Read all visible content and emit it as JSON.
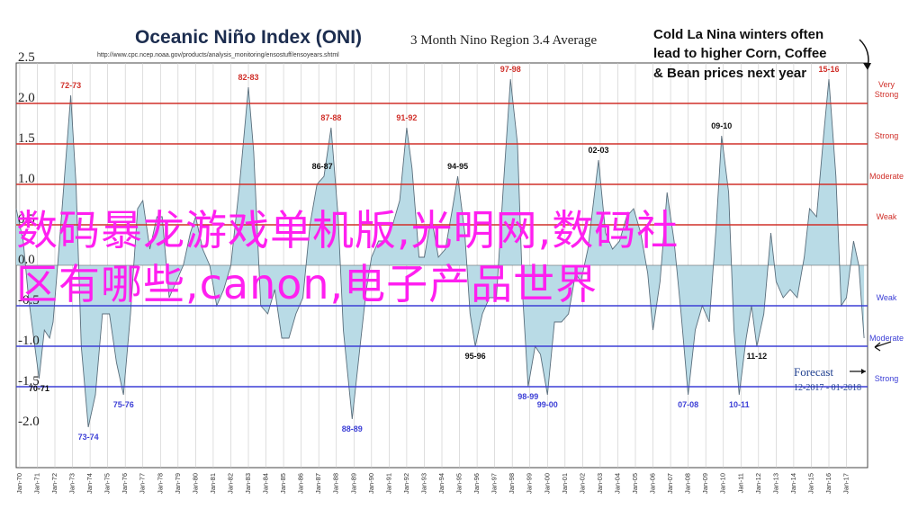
{
  "chart_data": {
    "type": "area",
    "title": "Oceanic Niño Index (ONI)",
    "subtitle": "3 Month Nino Region 3.4 Average",
    "source_url": "http://www.cpc.ncep.noaa.gov/products/analysis_monitoring/ensostuff/ensoyears.shtml",
    "ylim": [
      -2.5,
      2.5
    ],
    "yticks": [
      "2.5",
      "2.0",
      "1.5",
      "1.0",
      "0.5",
      "0.0",
      "-0.5",
      "-1.0",
      "-1.5",
      "-2.0"
    ],
    "x_tick_labels": [
      "Jan-70",
      "Jan-71",
      "Jan-72",
      "Jan-73",
      "Jan-74",
      "Jan-75",
      "Jan-76",
      "Jan-77",
      "Jan-78",
      "Jan-79",
      "Jan-80",
      "Jan-81",
      "Jan-82",
      "Jan-83",
      "Jan-84",
      "Jan-85",
      "Jan-86",
      "Jan-87",
      "Jan-88",
      "Jan-89",
      "Jan-90",
      "Jan-91",
      "Jan-92",
      "Jan-93",
      "Jan-94",
      "Jan-95",
      "Jan-96",
      "Jan-97",
      "Jan-98",
      "Jan-99",
      "Jan-00",
      "Jan-01",
      "Jan-02",
      "Jan-03",
      "Jan-04",
      "Jan-05",
      "Jan-06",
      "Jan-07",
      "Jan-08",
      "Jan-09",
      "Jan-10",
      "Jan-11",
      "Jan-12",
      "Jan-13",
      "Jan-14",
      "Jan-15",
      "Jan-16",
      "Jan-17"
    ],
    "x_range": [
      1969.8,
      1994.3,
      1970,
      2018.2
    ],
    "series": [
      {
        "points": [
          [
            1969.8,
            0.7
          ],
          [
            1970.2,
            0.3
          ],
          [
            1970.5,
            -0.4
          ],
          [
            1970.8,
            -0.9
          ],
          [
            1971.1,
            -1.4
          ],
          [
            1971.4,
            -0.8
          ],
          [
            1971.7,
            -0.9
          ],
          [
            1971.9,
            -0.7
          ],
          [
            1972.3,
            0.4
          ],
          [
            1972.9,
            2.1
          ],
          [
            1973.2,
            1.0
          ],
          [
            1973.5,
            -1.0
          ],
          [
            1973.9,
            -2.0
          ],
          [
            1974.3,
            -1.6
          ],
          [
            1974.7,
            -0.6
          ],
          [
            1975.1,
            -0.6
          ],
          [
            1975.5,
            -1.2
          ],
          [
            1975.9,
            -1.6
          ],
          [
            1976.3,
            -0.6
          ],
          [
            1976.7,
            0.7
          ],
          [
            1977.0,
            0.8
          ],
          [
            1977.4,
            0.2
          ],
          [
            1977.8,
            0.6
          ],
          [
            1978.1,
            0.6
          ],
          [
            1978.5,
            -0.4
          ],
          [
            1978.9,
            -0.2
          ],
          [
            1979.3,
            0.0
          ],
          [
            1979.7,
            0.4
          ],
          [
            1980.0,
            0.6
          ],
          [
            1980.4,
            0.2
          ],
          [
            1980.8,
            0.0
          ],
          [
            1981.2,
            -0.5
          ],
          [
            1981.6,
            -0.3
          ],
          [
            1982.0,
            0.0
          ],
          [
            1982.5,
            1.0
          ],
          [
            1983.0,
            2.2
          ],
          [
            1983.3,
            1.4
          ],
          [
            1983.7,
            -0.5
          ],
          [
            1984.1,
            -0.6
          ],
          [
            1984.5,
            -0.3
          ],
          [
            1984.9,
            -0.9
          ],
          [
            1985.3,
            -0.9
          ],
          [
            1985.7,
            -0.6
          ],
          [
            1986.1,
            -0.4
          ],
          [
            1986.5,
            0.5
          ],
          [
            1986.9,
            1.0
          ],
          [
            1987.3,
            1.1
          ],
          [
            1987.7,
            1.7
          ],
          [
            1988.1,
            0.6
          ],
          [
            1988.4,
            -0.8
          ],
          [
            1988.9,
            -1.9
          ],
          [
            1989.3,
            -1.1
          ],
          [
            1989.7,
            -0.3
          ],
          [
            1990.0,
            0.1
          ],
          [
            1990.4,
            0.3
          ],
          [
            1990.8,
            0.3
          ],
          [
            1991.2,
            0.5
          ],
          [
            1991.6,
            0.8
          ],
          [
            1992.0,
            1.7
          ],
          [
            1992.3,
            1.2
          ],
          [
            1992.7,
            0.1
          ],
          [
            1993.0,
            0.1
          ],
          [
            1993.4,
            0.6
          ],
          [
            1993.8,
            0.1
          ],
          [
            1994.2,
            0.2
          ],
          [
            1994.6,
            0.7
          ],
          [
            1994.9,
            1.1
          ],
          [
            1995.3,
            0.4
          ],
          [
            1995.6,
            -0.6
          ],
          [
            1995.9,
            -1.0
          ],
          [
            1996.3,
            -0.6
          ],
          [
            1996.7,
            -0.4
          ],
          [
            1997.1,
            -0.4
          ],
          [
            1997.5,
            1.0
          ],
          [
            1997.9,
            2.3
          ],
          [
            1998.3,
            1.5
          ],
          [
            1998.6,
            -0.4
          ],
          [
            1998.9,
            -1.5
          ],
          [
            1999.3,
            -1.0
          ],
          [
            1999.6,
            -1.1
          ],
          [
            2000.0,
            -1.6
          ],
          [
            2000.4,
            -0.7
          ],
          [
            2000.8,
            -0.7
          ],
          [
            2001.2,
            -0.6
          ],
          [
            2001.6,
            -0.1
          ],
          [
            2001.9,
            -0.2
          ],
          [
            2002.3,
            0.2
          ],
          [
            2002.9,
            1.3
          ],
          [
            2003.3,
            0.4
          ],
          [
            2003.7,
            0.2
          ],
          [
            2004.1,
            0.3
          ],
          [
            2004.5,
            0.6
          ],
          [
            2004.9,
            0.7
          ],
          [
            2005.3,
            0.4
          ],
          [
            2005.7,
            -0.1
          ],
          [
            2006.0,
            -0.8
          ],
          [
            2006.4,
            -0.2
          ],
          [
            2006.8,
            0.9
          ],
          [
            2007.2,
            0.3
          ],
          [
            2007.6,
            -0.6
          ],
          [
            2008.0,
            -1.6
          ],
          [
            2008.4,
            -0.8
          ],
          [
            2008.8,
            -0.5
          ],
          [
            2009.2,
            -0.7
          ],
          [
            2009.6,
            0.5
          ],
          [
            2009.9,
            1.6
          ],
          [
            2010.3,
            0.9
          ],
          [
            2010.6,
            -0.8
          ],
          [
            2010.9,
            -1.6
          ],
          [
            2011.3,
            -0.9
          ],
          [
            2011.6,
            -0.5
          ],
          [
            2011.9,
            -1.0
          ],
          [
            2012.3,
            -0.6
          ],
          [
            2012.7,
            0.4
          ],
          [
            2013.0,
            -0.2
          ],
          [
            2013.4,
            -0.4
          ],
          [
            2013.8,
            -0.3
          ],
          [
            2014.2,
            -0.4
          ],
          [
            2014.6,
            0.1
          ],
          [
            2014.9,
            0.7
          ],
          [
            2015.3,
            0.6
          ],
          [
            2015.7,
            1.6
          ],
          [
            2016.0,
            2.3
          ],
          [
            2016.4,
            1.1
          ],
          [
            2016.7,
            -0.5
          ],
          [
            2017.0,
            -0.4
          ],
          [
            2017.4,
            0.3
          ],
          [
            2017.7,
            0.0
          ],
          [
            2018.0,
            -0.9
          ]
        ]
      }
    ],
    "thresholds": [
      {
        "label": "Very Strong",
        "value": 2.0,
        "color": "#d0302a"
      },
      {
        "label": "Strong",
        "value": 1.5,
        "color": "#d0302a"
      },
      {
        "label": "Moderate",
        "value": 1.0,
        "color": "#d0302a"
      },
      {
        "label": "Weak",
        "value": 0.5,
        "color": "#d0302a"
      },
      {
        "label": "Weak",
        "value": -0.5,
        "color": "#3c3fd6"
      },
      {
        "label": "Moderate",
        "value": -1.0,
        "color": "#3c3fd6"
      },
      {
        "label": "Strong",
        "value": -1.5,
        "color": "#3c3fd6"
      }
    ],
    "peak_labels_warm": [
      {
        "text": "72-73",
        "x": 1972.9,
        "y": 2.1
      },
      {
        "text": "82-83",
        "x": 1983.0,
        "y": 2.2
      },
      {
        "text": "87-88",
        "x": 1987.7,
        "y": 1.7
      },
      {
        "text": "91-92",
        "x": 1992.0,
        "y": 1.7
      },
      {
        "text": "97-98",
        "x": 1997.9,
        "y": 2.3
      },
      {
        "text": "15-16",
        "x": 2016.0,
        "y": 2.3
      }
    ],
    "peak_labels_neutral": [
      {
        "text": "86-87",
        "x": 1987.2,
        "y": 1.1
      },
      {
        "text": "94-95",
        "x": 1994.9,
        "y": 1.1
      },
      {
        "text": "02-03",
        "x": 2002.9,
        "y": 1.3
      },
      {
        "text": "09-10",
        "x": 2009.9,
        "y": 1.6
      },
      {
        "text": "70-71",
        "x": 1971.1,
        "y": -1.4
      },
      {
        "text": "95-96",
        "x": 1995.9,
        "y": -1.0
      },
      {
        "text": "11-12",
        "x": 2011.9,
        "y": -1.0
      }
    ],
    "peak_labels_cold": [
      {
        "text": "73-74",
        "x": 1973.9,
        "y": -2.0
      },
      {
        "text": "75-76",
        "x": 1975.9,
        "y": -1.6
      },
      {
        "text": "88-89",
        "x": 1988.9,
        "y": -1.9
      },
      {
        "text": "98-99",
        "x": 1998.9,
        "y": -1.5
      },
      {
        "text": "99-00",
        "x": 2000.0,
        "y": -1.6
      },
      {
        "text": "07-08",
        "x": 2008.0,
        "y": -1.6
      },
      {
        "text": "10-11",
        "x": 2010.9,
        "y": -1.6
      }
    ],
    "callout": [
      "Cold La Nina winters often",
      "lead to higher Corn, Coffee",
      "& Bean prices next year"
    ],
    "forecast_label": "Forecast",
    "forecast_range": "12-2017 - 01-2018",
    "colors": {
      "area": "#b9dbe6",
      "area_stroke": "#5a6e7c",
      "warm": "#d0302a",
      "cold": "#3c3fd6"
    }
  },
  "overlay_text": {
    "line1": "数码暴龙游戏单机版,光明网,数码社",
    "line2": "区有哪些,canon,电子产品世界"
  }
}
